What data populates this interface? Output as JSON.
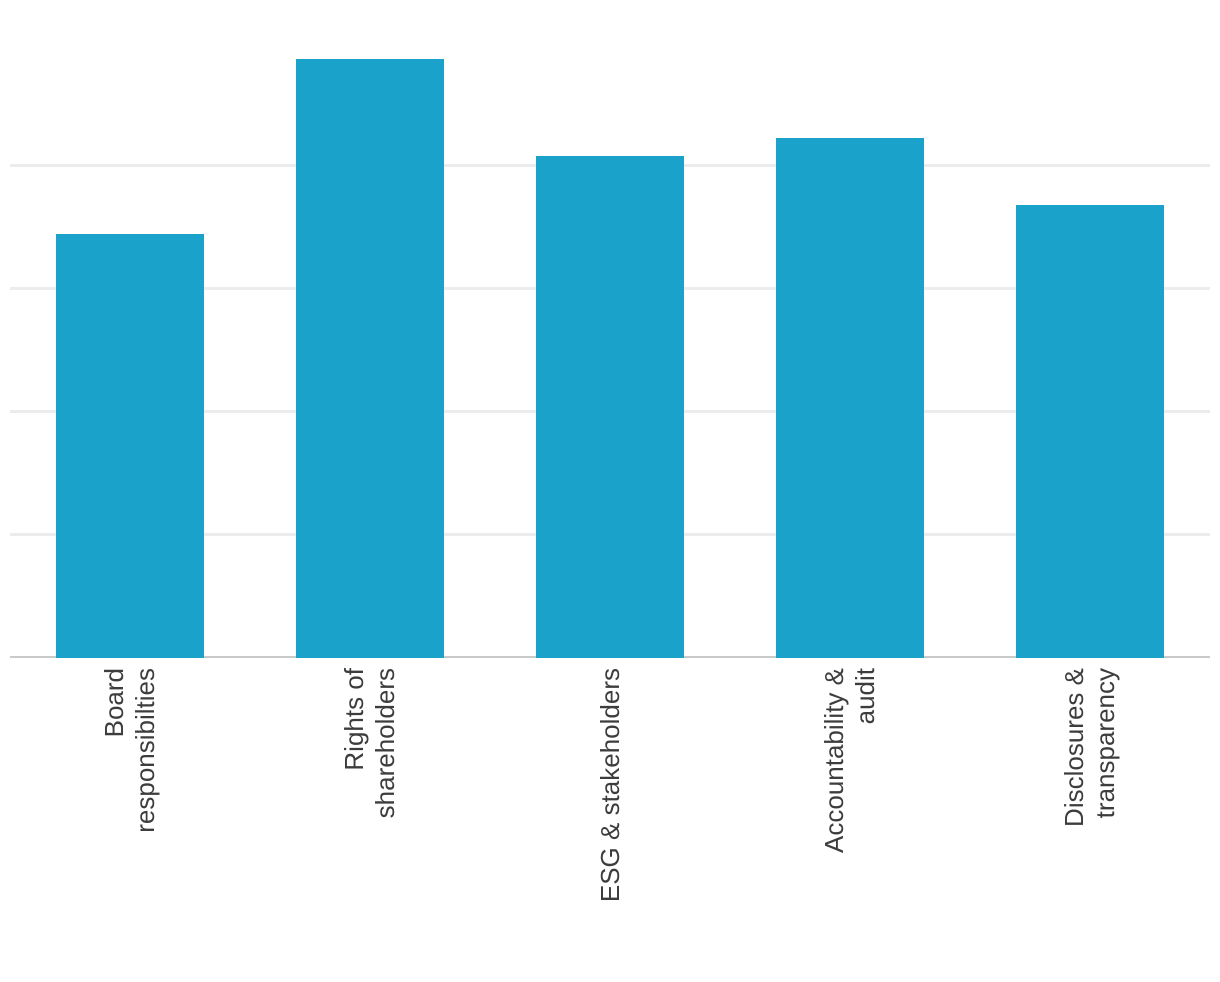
{
  "chart_data": {
    "type": "bar",
    "title": "",
    "xlabel": "",
    "ylabel": "",
    "categories": [
      "Board responsibilties",
      "Rights of shareholders",
      "ESG & stakeholders",
      "Accountability & audit",
      "Disclosures & transparency"
    ],
    "category_label_lines": [
      [
        "Board",
        "responsibilties"
      ],
      [
        "Rights of",
        "shareholders"
      ],
      [
        "ESG & stakeholders"
      ],
      [
        "Accountability &",
        "audit"
      ],
      [
        "Disclosures &",
        "transparency"
      ]
    ],
    "values": [
      3.45,
      4.87,
      4.08,
      4.23,
      3.68
    ],
    "ylim": [
      0,
      5.34
    ],
    "yticks_labeled": false,
    "gridlines_y": [
      1,
      2,
      3,
      4
    ],
    "grid": "horizontal-only",
    "legend": "none",
    "colors": {
      "bar": "#1ba2cb",
      "gridline": "#ececec",
      "axis_line": "#c9c9c9",
      "label_text": "#3d3d3d"
    }
  }
}
